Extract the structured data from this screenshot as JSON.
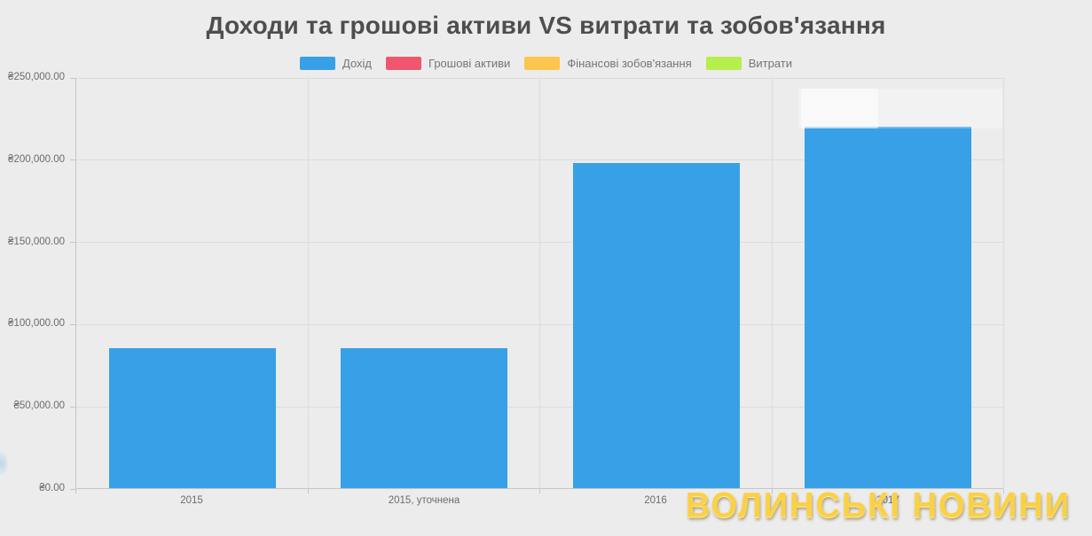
{
  "title": "Доходи та грошові активи VS витрати та зобов'язання",
  "watermark": "ВОЛИНСЬКІ НОВИНИ",
  "colors": {
    "background": "#ececec",
    "bar_income": "#38a0e6",
    "cash_assets": "#f0566f",
    "liabilities": "#fcc54d",
    "expenses": "#b6ef4d",
    "gridline": "#dcdcdc",
    "axis": "#c6c6c6",
    "title_text": "#4e4e4e",
    "label_text": "#6b6b6b",
    "watermark_gold": "#fbd144"
  },
  "legend": [
    {
      "label": "Дохід",
      "color": "#38a0e6"
    },
    {
      "label": "Грошові активи",
      "color": "#f0566f"
    },
    {
      "label": "Фінансові зобов'язання",
      "color": "#fcc54d"
    },
    {
      "label": "Витрати",
      "color": "#b6ef4d"
    }
  ],
  "chart_data": {
    "type": "bar",
    "title": "Доходи та грошові активи VS витрати та зобов'язання",
    "categories": [
      "2015",
      "2015, уточнена",
      "2016",
      "2017"
    ],
    "series": [
      {
        "name": "Дохід",
        "color": "#38a0e6",
        "values": [
          85000,
          85000,
          198000,
          220000
        ]
      }
    ],
    "legend_entries": [
      "Дохід",
      "Грошові активи",
      "Фінансові зобов'язання",
      "Витрати"
    ],
    "xlabel": "",
    "ylabel": "",
    "ylim": [
      0,
      250000
    ],
    "y_tick_values": [
      0,
      50000,
      100000,
      150000,
      200000,
      250000
    ],
    "y_tick_labels": [
      "₴0.00",
      "₴50,000.00",
      "₴100,000.00",
      "₴150,000.00",
      "₴200,000.00",
      "₴250,000.00"
    ],
    "grid": true,
    "legend_position": "top"
  }
}
